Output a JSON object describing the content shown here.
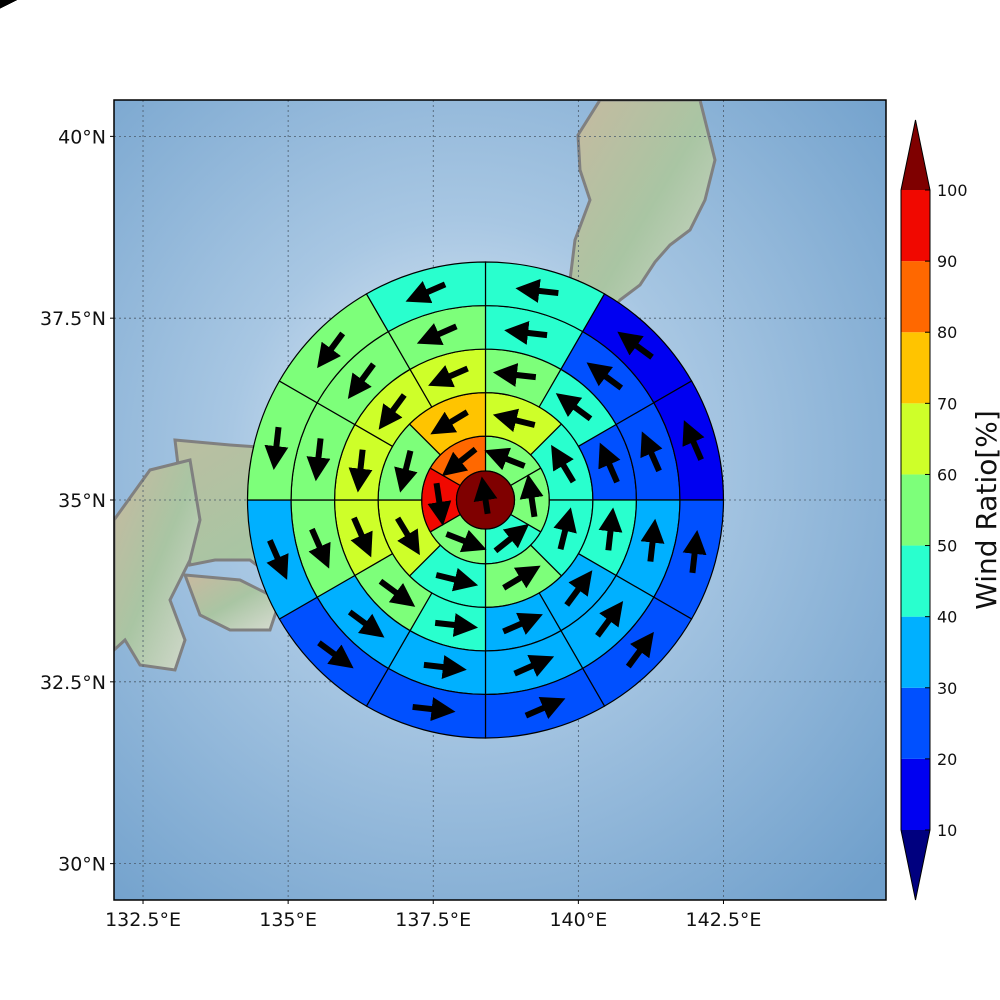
{
  "chart_data": {
    "type": "heatmap",
    "subtype": "polar sector map with wind vectors over a shaded-relief map",
    "title": "",
    "xlabel": "",
    "ylabel": "",
    "xlim": [
      132.0,
      145.3
    ],
    "ylim": [
      29.5,
      40.5
    ],
    "x_ticks": [
      132.5,
      135,
      137.5,
      140,
      142.5
    ],
    "x_tick_labels": [
      "132.5°E",
      "135°E",
      "137.5°E",
      "140°E",
      "142.5°E"
    ],
    "y_ticks": [
      30,
      32.5,
      35,
      37.5,
      40
    ],
    "y_tick_labels": [
      "30°N",
      "32.5°N",
      "35°N",
      "37.5°N",
      "40°N"
    ],
    "grid": "dotted",
    "center": {
      "lon": 138.4,
      "lat": 35.0
    },
    "ring_radii_deg": [
      0.5,
      1.1,
      1.85,
      2.6,
      3.35,
      4.1
    ],
    "center_value": 100,
    "rings": [
      {
        "ring": 1,
        "sectors": 6,
        "values": [
          52,
          55,
          48,
          58,
          95,
          85
        ]
      },
      {
        "ring": 2,
        "sectors": 8,
        "values": [
          62,
          46,
          48,
          52,
          42,
          62,
          55,
          72
        ]
      },
      {
        "ring": 3,
        "sectors": 12,
        "values": [
          55,
          44,
          26,
          42,
          35,
          32,
          42,
          55,
          62,
          65,
          63,
          65
        ]
      },
      {
        "ring": 4,
        "sectors": 12,
        "values": [
          44,
          22,
          22,
          32,
          33,
          31,
          32,
          35,
          58,
          55,
          52,
          55
        ]
      },
      {
        "ring": 5,
        "sectors": 12,
        "values": [
          45,
          17,
          12,
          24,
          27,
          24,
          23,
          23,
          38,
          51,
          55,
          48
        ]
      },
      {
        "ring": 6,
        "sectors": 16,
        "values": [
          48,
          15,
          10,
          10,
          18,
          25,
          24,
          26,
          22,
          22,
          22,
          22,
          38,
          44,
          48,
          45
        ]
      }
    ],
    "colorbar": {
      "label": "Wind Ratio[%]",
      "ticks": [
        10,
        20,
        30,
        40,
        50,
        60,
        70,
        80,
        90,
        100
      ],
      "bins": [
        {
          "from": 10,
          "to": 20,
          "color": "#0000f1"
        },
        {
          "from": 20,
          "to": 30,
          "color": "#0050ff"
        },
        {
          "from": 30,
          "to": 40,
          "color": "#00b0ff"
        },
        {
          "from": 40,
          "to": 50,
          "color": "#29ffce"
        },
        {
          "from": 50,
          "to": 60,
          "color": "#7dff7a"
        },
        {
          "from": 60,
          "to": 70,
          "color": "#ceff29"
        },
        {
          "from": 70,
          "to": 80,
          "color": "#ffc400"
        },
        {
          "from": 80,
          "to": 90,
          "color": "#ff6800"
        },
        {
          "from": 90,
          "to": 100,
          "color": "#f10800"
        }
      ],
      "under_color": "#00007f",
      "over_color": "#7f0000",
      "extend": "both"
    },
    "vector_color": "#000000",
    "map": {
      "ocean_color": "#8fb7d9",
      "land_color": "#b9c7b0",
      "coastline_color": "#808080"
    }
  }
}
